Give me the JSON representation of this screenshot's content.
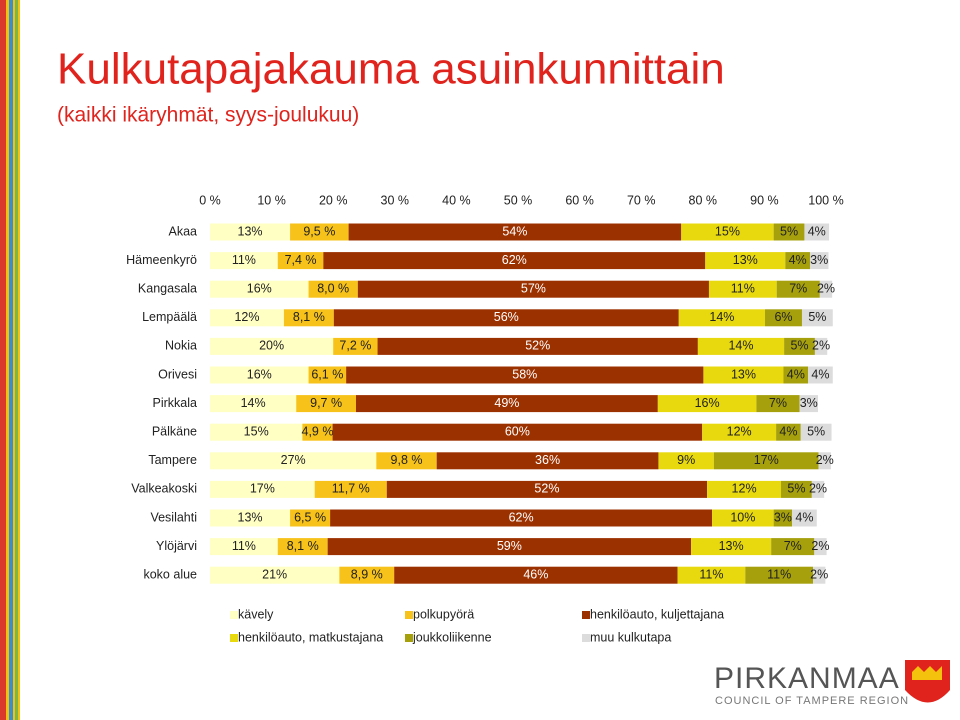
{
  "chart_data": {
    "type": "stacked-bar-horizontal",
    "title": "Kulkutapajakauma asuinkunnittain",
    "subtitle": "(kaikki ikäryhmät, syys-joulukuu)",
    "categories": [
      "Akaa",
      "Hämeenkyrö",
      "Kangasala",
      "Lempäälä",
      "Nokia",
      "Orivesi",
      "Pirkkala",
      "Pälkäne",
      "Tampere",
      "Valkeakoski",
      "Vesilahti",
      "Ylöjärvi",
      "koko alue"
    ],
    "xlim": [
      0,
      100
    ],
    "xticks": [
      {
        "value": 0,
        "label": "0 %"
      },
      {
        "value": 10,
        "label": "10 %"
      },
      {
        "value": 20,
        "label": "20 %"
      },
      {
        "value": 30,
        "label": "30 %"
      },
      {
        "value": 40,
        "label": "40 %"
      },
      {
        "value": 50,
        "label": "50 %"
      },
      {
        "value": 60,
        "label": "60 %"
      },
      {
        "value": 70,
        "label": "70 %"
      },
      {
        "value": 80,
        "label": "80 %"
      },
      {
        "value": 90,
        "label": "90 %"
      },
      {
        "value": 100,
        "label": "100 %"
      }
    ],
    "series": [
      {
        "name": "kävely",
        "color": "#ffffc4",
        "values": [
          13,
          11,
          16,
          12,
          20,
          16,
          14,
          15,
          27,
          17,
          13,
          11,
          21
        ],
        "value_labels": [
          "13%",
          "11%",
          "16%",
          "12%",
          "20%",
          "16%",
          "14%",
          "15%",
          "27%",
          "17%",
          "13%",
          "11%",
          "21%"
        ]
      },
      {
        "name": "polkupyörä",
        "color": "#f7c21a",
        "values": [
          9.5,
          7.4,
          8.0,
          8.1,
          7.2,
          6.1,
          9.7,
          4.9,
          9.8,
          11.7,
          6.5,
          8.1,
          8.9
        ],
        "value_labels": [
          "9,5 %",
          "7,4 %",
          "8,0 %",
          "8,1 %",
          "7,2 %",
          "6,1 %",
          "9,7 %",
          "4,9 %",
          "9,8 %",
          "11,7 %",
          "6,5 %",
          "8,1 %",
          "8,9 %"
        ]
      },
      {
        "name": "henkilöauto, kuljettajana",
        "color": "#9c3100",
        "values": [
          54,
          62,
          57,
          56,
          52,
          58,
          49,
          60,
          36,
          52,
          62,
          59,
          46
        ],
        "value_labels": [
          "54%",
          "62%",
          "57%",
          "56%",
          "52%",
          "58%",
          "49%",
          "60%",
          "36%",
          "52%",
          "62%",
          "59%",
          "46%"
        ]
      },
      {
        "name": "henkilöauto, matkustajana",
        "color": "#e8d90f",
        "values": [
          15,
          13,
          11,
          14,
          14,
          13,
          16,
          12,
          9,
          12,
          10,
          13,
          11
        ],
        "value_labels": [
          "15%",
          "13%",
          "11%",
          "14%",
          "14%",
          "13%",
          "16%",
          "12%",
          "9%",
          "12%",
          "10%",
          "13%",
          "11%"
        ]
      },
      {
        "name": "joukkoliikenne",
        "color": "#a6a00c",
        "values": [
          5,
          4,
          7,
          6,
          5,
          4,
          7,
          4,
          17,
          5,
          3,
          7,
          11
        ],
        "value_labels": [
          "5%",
          "4%",
          "7%",
          "6%",
          "5%",
          "4%",
          "7%",
          "4%",
          "17%",
          "5%",
          "3%",
          "7%",
          "11%"
        ]
      },
      {
        "name": "muu kulkutapa",
        "color": "#dcdcdc",
        "values": [
          4,
          3,
          2,
          5,
          2,
          4,
          3,
          5,
          2,
          2,
          4,
          2,
          2
        ],
        "value_labels": [
          "4%",
          "3%",
          "2%",
          "5%",
          "2%",
          "4%",
          "3%",
          "5%",
          "2%",
          "2%",
          "4%",
          "2%",
          "2%"
        ]
      }
    ]
  },
  "logo": {
    "name": "PIRKANMAA",
    "tagline": "COUNCIL OF TAMPERE REGION"
  }
}
